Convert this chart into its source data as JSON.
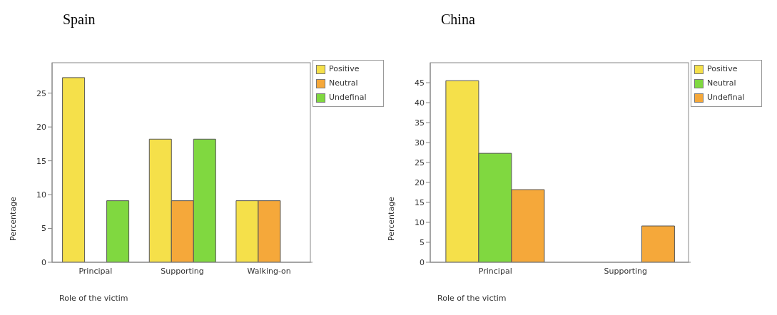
{
  "chart_data": [
    {
      "type": "bar",
      "title": "Spain",
      "xlabel": "Role of the victim",
      "ylabel": "Percentage",
      "categories": [
        "Principal",
        "Supporting",
        "Walking-on"
      ],
      "series": [
        {
          "name": "Positive",
          "color": "#f5e04a",
          "values": [
            27.3,
            18.2,
            9.1
          ]
        },
        {
          "name": "Neutral",
          "color": "#f5a83a",
          "values": [
            null,
            9.1,
            9.1
          ]
        },
        {
          "name": "Undefinal",
          "color": "#80d840",
          "values": [
            9.1,
            18.2,
            null
          ]
        }
      ],
      "ylim": [
        0,
        29.5
      ],
      "yticks": [
        0,
        5,
        10,
        15,
        20,
        25
      ],
      "grid": false,
      "legend": "top right"
    },
    {
      "type": "bar",
      "title": "China",
      "xlabel": "Role of the victim",
      "ylabel": "Percentage",
      "categories": [
        "Principal",
        "Supporting"
      ],
      "series": [
        {
          "name": "Positive",
          "color": "#f5e04a",
          "values": [
            45.5,
            null
          ]
        },
        {
          "name": "Neutral",
          "color": "#80d840",
          "values": [
            27.3,
            null
          ]
        },
        {
          "name": "Undefinal",
          "color": "#f5a83a",
          "values": [
            18.2,
            9.1
          ]
        }
      ],
      "ylim": [
        0,
        50
      ],
      "yticks": [
        0,
        5,
        10,
        15,
        20,
        25,
        30,
        35,
        40,
        45
      ],
      "grid": false,
      "legend": "top right"
    }
  ]
}
